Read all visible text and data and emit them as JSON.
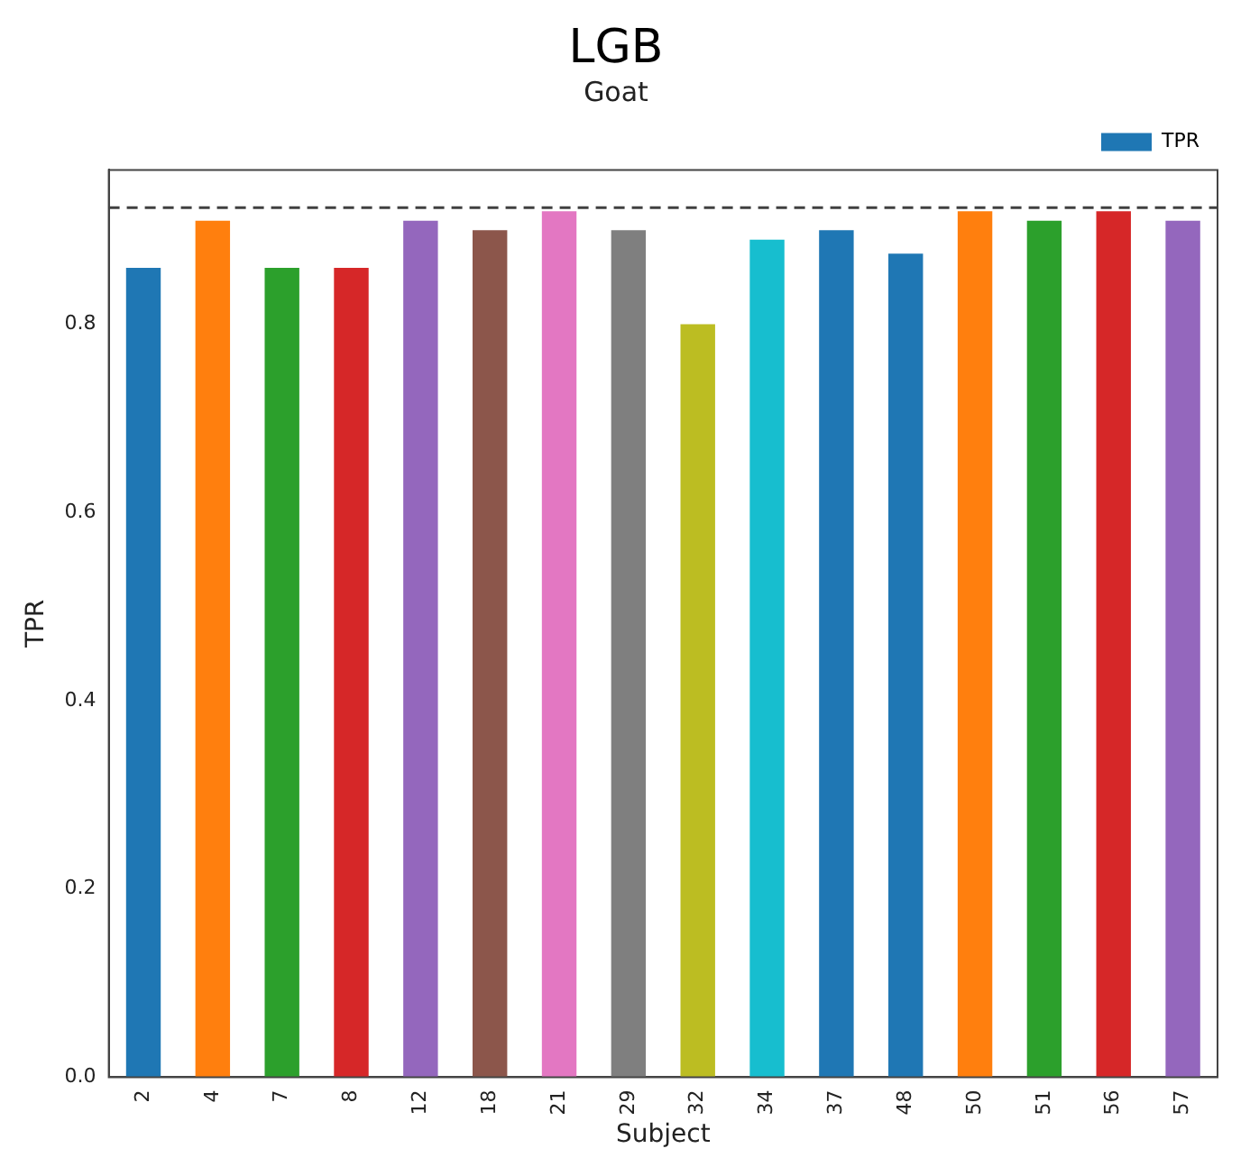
{
  "chart_data": {
    "type": "bar",
    "title": "LGB",
    "subtitle": "Goat",
    "xlabel": "Subject",
    "ylabel": "TPR",
    "categories": [
      "2",
      "4",
      "7",
      "8",
      "12",
      "18",
      "21",
      "29",
      "32",
      "34",
      "37",
      "48",
      "50",
      "51",
      "56",
      "57"
    ],
    "series": [
      {
        "name": "TPR",
        "color": "#1f77b4",
        "values": [
          0.86,
          0.91,
          0.86,
          0.86,
          0.91,
          0.9,
          0.92,
          0.9,
          0.8,
          0.89,
          0.9,
          0.875,
          0.92,
          0.91,
          0.92,
          0.91
        ],
        "colors": [
          "#1f77b4",
          "#ff7f0e",
          "#2ca02c",
          "#d62728",
          "#9467bd",
          "#8c564b",
          "#e377c2",
          "#7f7f7f",
          "#bcbd22",
          "#17becf",
          "#1f77b4",
          "#1f77b4",
          "#ff7f0e",
          "#2ca02c",
          "#d62728",
          "#9467bd"
        ]
      }
    ],
    "ylim": [
      0,
      0.964
    ],
    "yticks": [
      {
        "value": 0,
        "label": "0.0"
      },
      0.2,
      0.4,
      0.6,
      0.8
    ],
    "ref_lines": [
      {
        "axis": "y",
        "value": 0.924,
        "color": "#404040",
        "line_style": "dashed"
      }
    ],
    "legend": "top right",
    "grid": false
  }
}
